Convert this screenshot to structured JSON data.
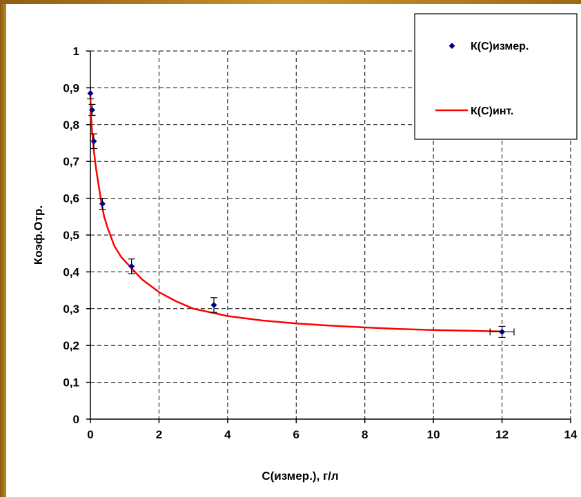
{
  "chart_data": {
    "type": "scatter",
    "xlabel": "С(измер.), г/л",
    "ylabel": "Коэф.Отр.",
    "xlim": [
      0,
      14
    ],
    "ylim": [
      0,
      1
    ],
    "x_ticks": [
      "0",
      "2",
      "4",
      "6",
      "8",
      "10",
      "12",
      "14"
    ],
    "y_ticks": [
      "0",
      "0,1",
      "0,2",
      "0,3",
      "0,4",
      "0,5",
      "0,6",
      "0,7",
      "0,8",
      "0,9",
      "1"
    ],
    "grid": true,
    "legend_position": "top-right",
    "series": [
      {
        "name": "К(С)измер.",
        "kind": "points",
        "color": "#000080",
        "marker": "diamond",
        "points": [
          {
            "x": 0.0,
            "y": 0.885,
            "yerr": 0.015,
            "xerr": 0.0
          },
          {
            "x": 0.05,
            "y": 0.84,
            "yerr": 0.015,
            "xerr": 0.0
          },
          {
            "x": 0.1,
            "y": 0.755,
            "yerr": 0.02,
            "xerr": 0.0
          },
          {
            "x": 0.35,
            "y": 0.585,
            "yerr": 0.015,
            "xerr": 0.0
          },
          {
            "x": 1.2,
            "y": 0.415,
            "yerr": 0.02,
            "xerr": 0.0
          },
          {
            "x": 3.6,
            "y": 0.31,
            "yerr": 0.02,
            "xerr": 0.0
          },
          {
            "x": 12.0,
            "y": 0.237,
            "yerr": 0.015,
            "xerr": 0.35
          }
        ]
      },
      {
        "name": "К(С)инт.",
        "kind": "line",
        "color": "#ff0000",
        "x": [
          0.0,
          0.02,
          0.05,
          0.1,
          0.15,
          0.2,
          0.3,
          0.4,
          0.5,
          0.7,
          0.9,
          1.2,
          1.5,
          2.0,
          2.5,
          3.0,
          3.5,
          4.0,
          5.0,
          6.0,
          7.0,
          8.0,
          9.0,
          10.0,
          11.0,
          12.0
        ],
        "y": [
          0.88,
          0.82,
          0.78,
          0.73,
          0.69,
          0.66,
          0.6,
          0.55,
          0.52,
          0.47,
          0.44,
          0.41,
          0.38,
          0.345,
          0.32,
          0.3,
          0.29,
          0.28,
          0.268,
          0.26,
          0.254,
          0.249,
          0.245,
          0.242,
          0.24,
          0.238
        ]
      }
    ]
  }
}
